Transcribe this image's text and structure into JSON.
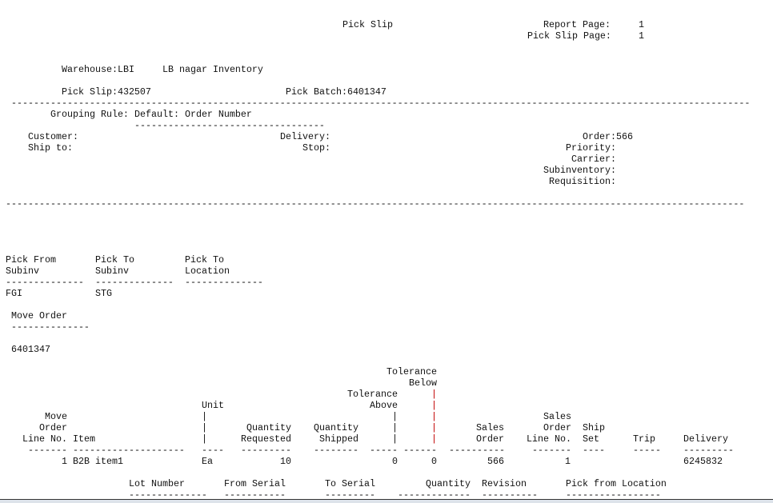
{
  "header": {
    "title": "Pick Slip",
    "report_page_label": "Report Page:",
    "report_page": "1",
    "pick_slip_page_label": "Pick Slip Page:",
    "pick_slip_page": "1"
  },
  "warehouse": {
    "label": "Warehouse:LBI",
    "name": "LB nagar Inventory"
  },
  "pick_slip": "Pick Slip:432507",
  "pick_batch": "Pick Batch:6401347",
  "separator_long": "------------------------------------------------------------------------------------------------------------------------------------",
  "grouping": {
    "label": "Grouping Rule:",
    "value": "Default: Order Number",
    "underline": "----------------------------------"
  },
  "order_info": {
    "customer": "Customer:",
    "ship_to": "Ship to:",
    "delivery": "Delivery:",
    "stop": "Stop:",
    "order": "Order:566",
    "priority": "Priority:",
    "carrier": "Carrier:",
    "subinventory": "Subinventory:",
    "requisition": "Requisition:"
  },
  "subinv": {
    "from_l1": "Pick From",
    "from_l2": "Subinv",
    "to_l1": "Pick To",
    "to_l2": "Subinv",
    "loc_l1": "Pick To",
    "loc_l2": "Location",
    "dash14": "--------------",
    "from_value": "FGI",
    "to_value": "STG"
  },
  "move_order": {
    "label": "Move Order",
    "value": "6401347"
  },
  "table": {
    "headers": {
      "move": "Move",
      "order": "Order",
      "line_no": "Line No.",
      "item": "Item",
      "unit": "Unit",
      "qty_req_1": "Quantity",
      "qty_req_2": "Requested",
      "qty_ship_1": "Quantity",
      "qty_ship_2": "Shipped",
      "tol_above_1": "Tolerance",
      "tol_above_2": "Above",
      "tol_below_1": "Tolerance",
      "tol_below_2": "Below",
      "pipe": "|",
      "sales_order_1": "Sales",
      "sales_order_2": "Order",
      "so_line_1": "Sales",
      "so_line_2": "Order",
      "so_line_3": "Line No.",
      "ship_set_1": "Ship",
      "ship_set_2": "Set",
      "trip": "Trip",
      "delivery": "Delivery"
    },
    "dashes": [
      "-------",
      "--------------------",
      "----",
      "---------",
      "--------",
      "-----",
      "------",
      "----------",
      "-------",
      "----",
      "-----",
      "---------"
    ],
    "rows": [
      {
        "line_no": "1",
        "item": "B2B item1",
        "unit": "Ea",
        "qty_requested": "10",
        "qty_shipped": "",
        "tol_above": "0",
        "tol_below": "0",
        "sales_order": "566",
        "so_line": "1",
        "ship_set": "",
        "trip": "",
        "delivery": "6245832"
      }
    ]
  },
  "lot_table": {
    "headers": [
      "Lot Number",
      "From Serial",
      "To Serial",
      "Quantity",
      "Revision",
      "Pick from Location"
    ],
    "dashes": [
      "--------------",
      "-----------",
      "---------",
      "-------------",
      "----------",
      "-----------------"
    ]
  },
  "colors": {
    "text": "#111111",
    "tolerance_marker": "#c00000"
  }
}
